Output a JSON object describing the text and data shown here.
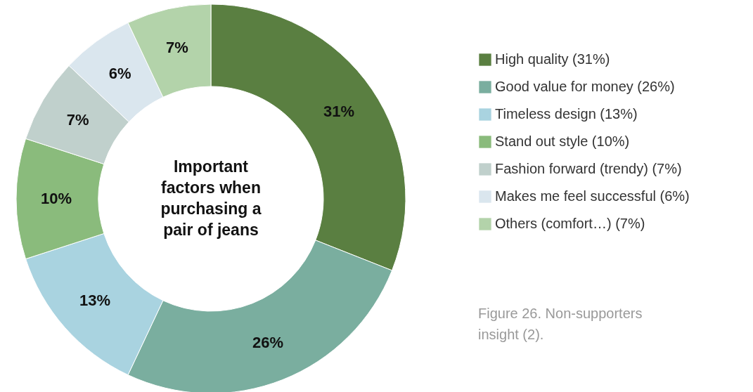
{
  "chart_data": {
    "type": "donut",
    "title": "Important factors when purchasing a pair of jeans",
    "categories": [
      "High quality (31%)",
      "Good value for money (26%)",
      "Timeless design (13%)",
      "Stand out style (10%)",
      "Fashion forward (trendy) (7%)",
      "Makes me feel successful (6%)",
      "Others (comfort…) (7%)"
    ],
    "values": [
      31,
      26,
      13,
      10,
      7,
      6,
      7
    ],
    "colors": [
      "#5a7f41",
      "#7aae9f",
      "#a9d3e0",
      "#8abb7c",
      "#c0d0cc",
      "#dae6ee",
      "#b3d3aa"
    ],
    "value_labels": [
      "31%",
      "26%",
      "13%",
      "10%",
      "7%",
      "6%",
      "7%"
    ],
    "legend": "right",
    "annotations": [
      "Figure 26. Non-supporters insight (2)."
    ]
  }
}
